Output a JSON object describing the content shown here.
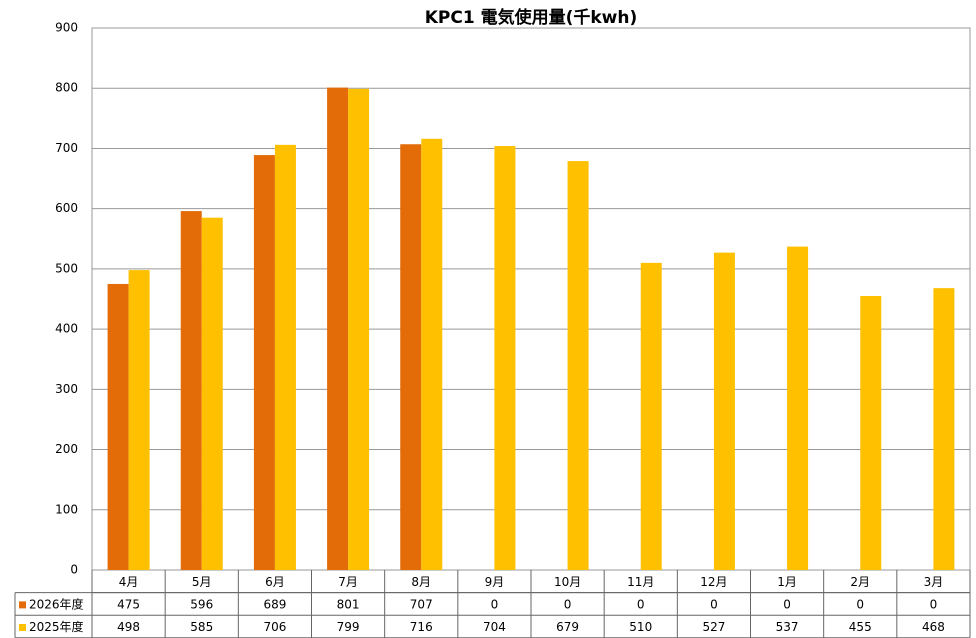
{
  "chart_data": {
    "type": "bar",
    "title": "KPC1 電気使用量(千kwh)",
    "categories": [
      "4月",
      "5月",
      "6月",
      "7月",
      "8月",
      "9月",
      "10月",
      "11月",
      "12月",
      "1月",
      "2月",
      "3月"
    ],
    "series": [
      {
        "name": "2026年度",
        "color": "#e36c09",
        "values": [
          475,
          596,
          689,
          801,
          707,
          0,
          0,
          0,
          0,
          0,
          0,
          0
        ]
      },
      {
        "name": "2025年度",
        "color": "#ffc000",
        "values": [
          498,
          585,
          706,
          799,
          716,
          704,
          679,
          510,
          527,
          537,
          455,
          468
        ]
      }
    ],
    "ylim": [
      0,
      900
    ],
    "yticks": [
      0,
      100,
      200,
      300,
      400,
      500,
      600,
      700,
      800,
      900
    ],
    "grid": true
  }
}
